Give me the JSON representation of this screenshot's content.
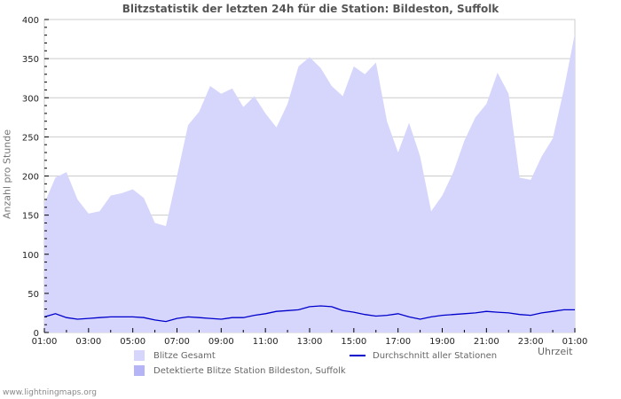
{
  "chart_data": {
    "type": "area",
    "title": "Blitzstatistik der letzten 24h für die Station: Bildeston, Suffolk",
    "xlabel": "Uhrzeit",
    "ylabel": "Anzahl pro Stunde",
    "ylim": [
      0,
      400
    ],
    "yticks": [
      "0",
      "50",
      "100",
      "150",
      "200",
      "250",
      "300",
      "350",
      "400"
    ],
    "xticks": [
      "01:00",
      "03:00",
      "05:00",
      "07:00",
      "09:00",
      "11:00",
      "13:00",
      "15:00",
      "17:00",
      "19:00",
      "21:00",
      "23:00",
      "01:00"
    ],
    "grid": true,
    "legend_position": "bottom",
    "x": [
      "01:00",
      "01:30",
      "02:00",
      "02:30",
      "03:00",
      "03:30",
      "04:00",
      "04:30",
      "05:00",
      "05:30",
      "06:00",
      "06:30",
      "07:00",
      "07:30",
      "08:00",
      "08:30",
      "09:00",
      "09:30",
      "10:00",
      "10:30",
      "11:00",
      "11:30",
      "12:00",
      "12:30",
      "13:00",
      "13:30",
      "14:00",
      "14:30",
      "15:00",
      "15:30",
      "16:00",
      "16:30",
      "17:00",
      "17:30",
      "18:00",
      "18:30",
      "19:00",
      "19:30",
      "20:00",
      "20:30",
      "21:00",
      "21:30",
      "22:00",
      "22:30",
      "23:00",
      "23:30",
      "00:00",
      "00:30",
      "01:00"
    ],
    "series": [
      {
        "name": "Blitze Gesamt",
        "type": "area",
        "color": "#d6d6fc",
        "values": [
          165,
          198,
          205,
          170,
          152,
          155,
          175,
          178,
          183,
          172,
          140,
          136,
          200,
          265,
          282,
          315,
          305,
          312,
          288,
          302,
          280,
          262,
          292,
          340,
          352,
          338,
          315,
          302,
          340,
          330,
          345,
          270,
          230,
          268,
          225,
          155,
          175,
          205,
          245,
          275,
          292,
          332,
          305,
          198,
          195,
          225,
          248,
          310,
          382
        ]
      },
      {
        "name": "Detektierte Blitze Station Bildeston, Suffolk",
        "type": "area",
        "color": "#b4b4f6",
        "values": []
      },
      {
        "name": "Durchschnitt aller Stationen",
        "type": "line",
        "color": "#0000cc",
        "values": [
          20,
          24,
          19,
          17,
          18,
          19,
          20,
          20,
          20,
          19,
          16,
          14,
          18,
          20,
          19,
          18,
          17,
          19,
          19,
          22,
          24,
          27,
          28,
          29,
          33,
          34,
          33,
          28,
          26,
          23,
          21,
          22,
          24,
          20,
          17,
          20,
          22,
          23,
          24,
          25,
          27,
          26,
          25,
          23,
          22,
          25,
          27,
          29,
          29
        ]
      }
    ]
  },
  "legend": {
    "items": [
      {
        "label": "Blitze Gesamt",
        "color": "#d6d6fc"
      },
      {
        "label": "Detektierte Blitze Station Bildeston, Suffolk",
        "color": "#b4b4f6"
      },
      {
        "label": "Durchschnitt aller Stationen",
        "color": "#0000cc"
      }
    ]
  },
  "footer": "www.lightningmaps.org"
}
